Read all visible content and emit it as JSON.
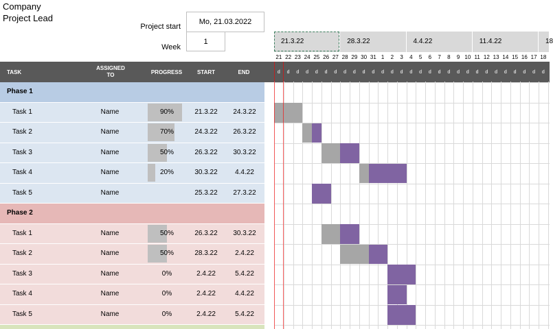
{
  "company": "Company",
  "project_lead": "Project Lead",
  "project_start_label": "Project start",
  "project_start_value": "Mo, 21.03.2022",
  "week_label": "Week",
  "week_value": "1",
  "columns": {
    "task": "TASK",
    "assigned_to": "ASSIGNED TO",
    "progress": "PROGRESS",
    "start": "START",
    "end": "END"
  },
  "weeks": [
    "21.3.22",
    "28.3.22",
    "4.4.22",
    "11.4.22",
    "18"
  ],
  "days": [
    "21",
    "22",
    "23",
    "24",
    "25",
    "26",
    "27",
    "28",
    "29",
    "30",
    "31",
    "1",
    "2",
    "3",
    "4",
    "5",
    "6",
    "7",
    "8",
    "9",
    "10",
    "11",
    "12",
    "13",
    "14",
    "15",
    "16",
    "17",
    "18"
  ],
  "day_letter": "d",
  "rows": [
    {
      "type": "phase",
      "group": 1,
      "label": "Phase 1"
    },
    {
      "type": "task",
      "group": 1,
      "label": "Task 1",
      "assigned": "Name",
      "progress": "90%",
      "progress_value": 0.9,
      "start": "21.3.22",
      "end": "24.3.22"
    },
    {
      "type": "task",
      "group": 1,
      "label": "Task 2",
      "assigned": "Name",
      "progress": "70%",
      "progress_value": 0.7,
      "start": "24.3.22",
      "end": "26.3.22"
    },
    {
      "type": "task",
      "group": 1,
      "label": "Task 3",
      "assigned": "Name",
      "progress": "50%",
      "progress_value": 0.5,
      "start": "26.3.22",
      "end": "30.3.22"
    },
    {
      "type": "task",
      "group": 1,
      "label": "Task 4",
      "assigned": "Name",
      "progress": "20%",
      "progress_value": 0.2,
      "start": "30.3.22",
      "end": "4.4.22"
    },
    {
      "type": "task",
      "group": 1,
      "label": "Task 5",
      "assigned": "Name",
      "progress": "",
      "progress_value": 0,
      "start": "25.3.22",
      "end": "27.3.22"
    },
    {
      "type": "phase",
      "group": 2,
      "label": "Phase 2"
    },
    {
      "type": "task",
      "group": 2,
      "label": "Task 1",
      "assigned": "Name",
      "progress": "50%",
      "progress_value": 0.5,
      "start": "26.3.22",
      "end": "30.3.22"
    },
    {
      "type": "task",
      "group": 2,
      "label": "Task 2",
      "assigned": "Name",
      "progress": "50%",
      "progress_value": 0.5,
      "start": "28.3.22",
      "end": "2.4.22"
    },
    {
      "type": "task",
      "group": 2,
      "label": "Task 3",
      "assigned": "Name",
      "progress": "0%",
      "progress_value": 0,
      "start": "2.4.22",
      "end": "5.4.22"
    },
    {
      "type": "task",
      "group": 2,
      "label": "Task 4",
      "assigned": "Name",
      "progress": "0%",
      "progress_value": 0,
      "start": "2.4.22",
      "end": "4.4.22"
    },
    {
      "type": "task",
      "group": 2,
      "label": "Task 5",
      "assigned": "Name",
      "progress": "0%",
      "progress_value": 0,
      "start": "2.4.22",
      "end": "5.4.22"
    }
  ],
  "colors": {
    "header_dark": "#595959",
    "phase1": "#b8cce4",
    "phase1_task": "#dce6f1",
    "phase2": "#e6b8b7",
    "phase2_task": "#f2dcdb",
    "phase3": "#d8e4bc",
    "bar_done": "#a6a6a6",
    "bar_remaining": "#8064a2",
    "today_line": "#ff0000"
  }
}
